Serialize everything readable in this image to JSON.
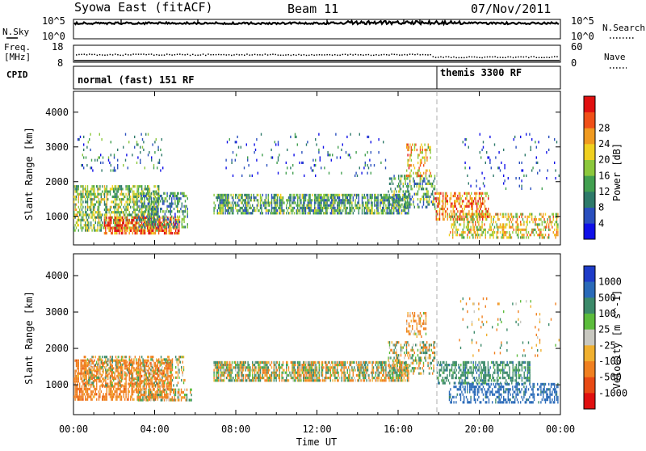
{
  "header": {
    "station": "Syowa East (fitACF)",
    "beam": "Beam 11",
    "date": "07/Nov/2011"
  },
  "summary": {
    "nsky_label": "N.Sky",
    "nsearch_label": "N.Search",
    "nsky_ticks": [
      "10^5",
      "10^0"
    ],
    "nsearch_ticks": [
      "10^5",
      "10^0"
    ],
    "freq_label_1": "Freq.",
    "freq_label_2": "[MHz]",
    "freq_ticks": [
      "18",
      "8"
    ],
    "nave_label": "Nave",
    "nave_ticks": [
      "60",
      "0"
    ],
    "cpid_label": "CPID",
    "cpid_segments": [
      {
        "name": "normal (fast) 151 RF",
        "start_hour": 0
      },
      {
        "name": "themis 3300 RF",
        "start_hour": 18
      }
    ]
  },
  "axes": {
    "x_ticks": [
      "00:00",
      "04:00",
      "08:00",
      "12:00",
      "16:00",
      "20:00",
      "00:00"
    ],
    "x_label": "Time UT",
    "y_label": "Slant Range [km]",
    "y_ticks": [
      "1000",
      "2000",
      "3000",
      "4000"
    ],
    "y_tick_values": [
      1000,
      2000,
      3000,
      4000
    ]
  },
  "power_scale": {
    "label": "Power [dB]",
    "ticks": [
      "4",
      "8",
      "12",
      "16",
      "20",
      "24",
      "28"
    ],
    "colors": [
      "#1010e8",
      "#2a4fbe",
      "#2e7a6a",
      "#42a050",
      "#8cc83c",
      "#f0d020",
      "#f09a20",
      "#f05018",
      "#e01010"
    ]
  },
  "velocity_scale": {
    "label": "Velocity [m s^-1]",
    "ticks": [
      "1000",
      "500",
      "100",
      "25",
      "-25",
      "-100",
      "-500",
      "-1000"
    ],
    "colors": [
      "#1e3cc8",
      "#2a6ab8",
      "#3c8a6a",
      "#5cbc3c",
      "#c8c8c0",
      "#f0b030",
      "#f08020",
      "#e84a14",
      "#e01010"
    ]
  },
  "chart_data": [
    {
      "type": "heatmap",
      "parameter": "Power",
      "unit": "dB",
      "xlabel": "Time UT",
      "ylabel": "Slant Range [km]",
      "xlim_hours": [
        0,
        24
      ],
      "ylim": [
        180,
        4600
      ],
      "clim": [
        0,
        30
      ],
      "regions": [
        {
          "t": [
            0.0,
            4.2
          ],
          "r": [
            600,
            1900
          ],
          "level": 14,
          "density": 0.55
        },
        {
          "t": [
            1.5,
            5.2
          ],
          "r": [
            550,
            1000
          ],
          "level": 25,
          "density": 0.6
        },
        {
          "t": [
            3.2,
            5.6
          ],
          "r": [
            700,
            1700
          ],
          "level": 10,
          "density": 0.45
        },
        {
          "t": [
            0.2,
            4.5
          ],
          "r": [
            2300,
            3400
          ],
          "level": 8,
          "density": 0.08
        },
        {
          "t": [
            6.9,
            16.5
          ],
          "r": [
            1100,
            1650
          ],
          "level": 11,
          "density": 0.7
        },
        {
          "t": [
            7.5,
            15.5
          ],
          "r": [
            2200,
            3400
          ],
          "level": 6,
          "density": 0.05
        },
        {
          "t": [
            15.5,
            17.8
          ],
          "r": [
            1300,
            2200
          ],
          "level": 12,
          "density": 0.4
        },
        {
          "t": [
            16.4,
            17.6
          ],
          "r": [
            2200,
            3100
          ],
          "level": 20,
          "density": 0.35
        },
        {
          "t": [
            17.8,
            20.5
          ],
          "r": [
            950,
            1700
          ],
          "level": 22,
          "density": 0.55
        },
        {
          "t": [
            18.5,
            23.9
          ],
          "r": [
            400,
            1100
          ],
          "level": 18,
          "density": 0.45
        },
        {
          "t": [
            19.0,
            24.0
          ],
          "r": [
            1800,
            3400
          ],
          "level": 5,
          "density": 0.04
        }
      ]
    },
    {
      "type": "heatmap",
      "parameter": "Velocity",
      "unit": "m s^-1",
      "xlabel": "Time UT",
      "ylabel": "Slant Range [km]",
      "xlim_hours": [
        0,
        24
      ],
      "ylim": [
        180,
        4600
      ],
      "clim": [
        -1000,
        1000
      ],
      "regions": [
        {
          "t": [
            0.0,
            4.8
          ],
          "r": [
            600,
            1700
          ],
          "level": -300,
          "density": 0.6
        },
        {
          "t": [
            3.0,
            5.8
          ],
          "r": [
            550,
            900
          ],
          "level": -80,
          "density": 0.55
        },
        {
          "t": [
            0.5,
            5.5
          ],
          "r": [
            1000,
            1800
          ],
          "level": 0,
          "density": 0.35
        },
        {
          "t": [
            6.9,
            16.5
          ],
          "r": [
            1100,
            1650
          ],
          "level": 0,
          "density": 0.75
        },
        {
          "t": [
            15.5,
            17.8
          ],
          "r": [
            1300,
            2200
          ],
          "level": 0,
          "density": 0.4
        },
        {
          "t": [
            16.4,
            17.4
          ],
          "r": [
            2300,
            3000
          ],
          "level": -200,
          "density": 0.35
        },
        {
          "t": [
            17.9,
            22.5
          ],
          "r": [
            1050,
            1650
          ],
          "level": 300,
          "density": 0.55
        },
        {
          "t": [
            18.5,
            23.9
          ],
          "r": [
            550,
            1050
          ],
          "level": 700,
          "density": 0.45
        },
        {
          "t": [
            19.0,
            24.0
          ],
          "r": [
            1800,
            3400
          ],
          "level": 0,
          "density": 0.05
        }
      ]
    }
  ]
}
